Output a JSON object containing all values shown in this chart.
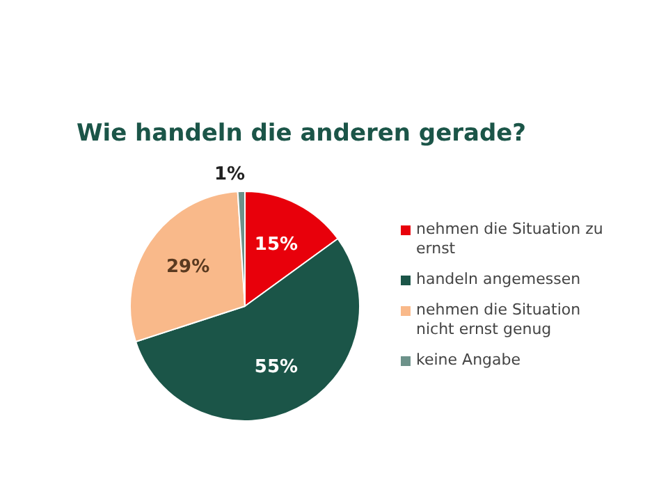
{
  "chart_data": {
    "type": "pie",
    "title": "Wie handeln die anderen gerade?",
    "categories": [
      "nehmen die Situation zu ernst",
      "handeln angemessen",
      "nehmen die Situation nicht ernst genug",
      "keine Angabe"
    ],
    "values": [
      15,
      55,
      29,
      1
    ],
    "colors": [
      "#e8000b",
      "#1b5548",
      "#f9b98a",
      "#6d928a"
    ],
    "value_labels": [
      "15%",
      "55%",
      "29%",
      "1%"
    ],
    "legend": "right"
  }
}
